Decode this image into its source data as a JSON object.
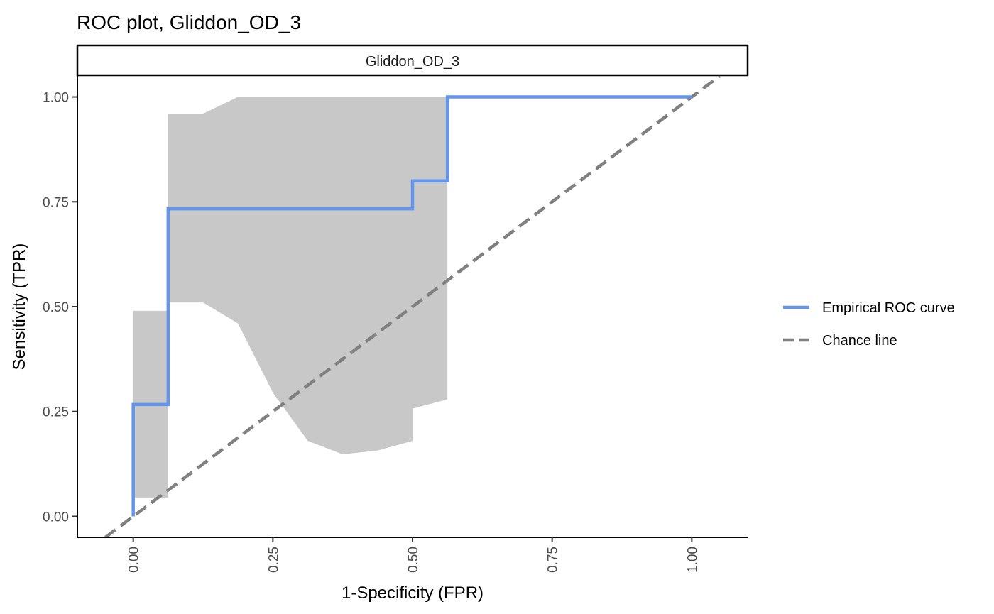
{
  "chart_data": {
    "type": "line",
    "title": "ROC plot, Gliddon_OD_3",
    "facet_label": "Gliddon_OD_3",
    "xlabel": "1-Specificity (FPR)",
    "ylabel": "Sensitivity (TPR)",
    "xlim": [
      -0.1,
      1.1
    ],
    "ylim": [
      -0.05,
      1.05
    ],
    "x_ticks": [
      0,
      0.25,
      0.5,
      0.75,
      1
    ],
    "x_tick_labels": [
      "0.00",
      "0.25",
      "0.50",
      "0.75",
      "1.00"
    ],
    "y_ticks": [
      0,
      0.25,
      0.5,
      0.75,
      1
    ],
    "y_tick_labels": [
      "0.00",
      "0.25",
      "0.50",
      "0.75",
      "1.00"
    ],
    "grid": false,
    "legend_position": "right",
    "series": [
      {
        "name": "Empirical ROC curve",
        "style": "solid",
        "color": "#6495ED",
        "x": [
          0,
          0,
          0.0625,
          0.0625,
          0.5,
          0.5,
          0.5625,
          0.5625,
          1
        ],
        "y": [
          0,
          0.2667,
          0.2667,
          0.7333,
          0.7333,
          0.8,
          0.8,
          1,
          1
        ]
      },
      {
        "name": "Chance line",
        "style": "dashed",
        "color": "#808080",
        "x": [
          -0.05,
          1.05
        ],
        "y": [
          -0.05,
          1.05
        ]
      }
    ],
    "confidence_band": {
      "color": "#c8c8c8",
      "upper": {
        "x": [
          0,
          0.0625,
          0.0625,
          0.125,
          0.1875,
          0.5625
        ],
        "y": [
          0.49,
          0.49,
          0.96,
          0.96,
          1.0,
          1.0
        ]
      },
      "lower": {
        "x": [
          0,
          0.0625,
          0.0625,
          0.125,
          0.1875,
          0.25,
          0.3125,
          0.375,
          0.4375,
          0.5,
          0.5,
          0.5625
        ],
        "y": [
          0.045,
          0.045,
          0.51,
          0.51,
          0.46,
          0.295,
          0.18,
          0.148,
          0.157,
          0.18,
          0.257,
          0.279
        ]
      }
    }
  }
}
